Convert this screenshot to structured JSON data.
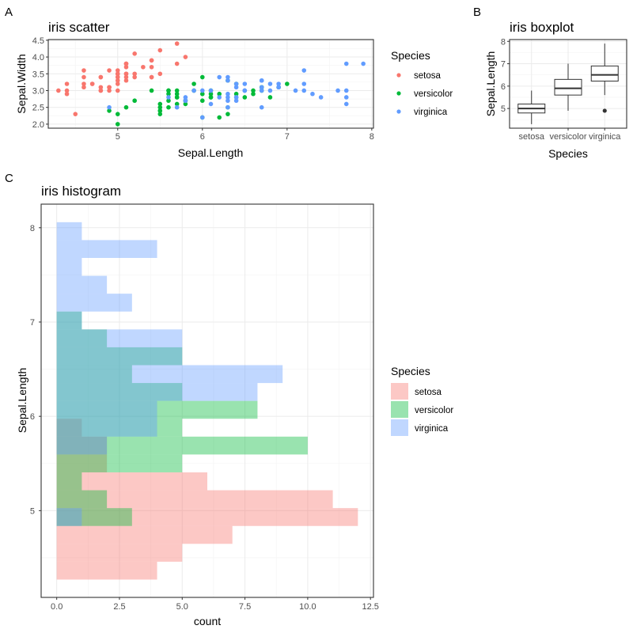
{
  "panel_tags": [
    "A",
    "B",
    "C"
  ],
  "colors": {
    "setosa": "#F8766D",
    "versicolor": "#00BA38",
    "virginica": "#619CFF"
  },
  "chart_data": [
    {
      "id": "scatter",
      "type": "scatter",
      "title": "iris scatter",
      "xlabel": "Sepal.Length",
      "ylabel": "Sepal.Width",
      "xlim": [
        4.18,
        8.02
      ],
      "ylim": [
        1.88,
        4.52
      ],
      "xticks": [
        5,
        6,
        7,
        8
      ],
      "xtick_labels": [
        "5",
        "6",
        "7",
        "8"
      ],
      "yticks": [
        2.0,
        2.5,
        3.0,
        3.5,
        4.0,
        4.5
      ],
      "ytick_labels": [
        "2.0",
        "2.5",
        "3.0",
        "3.5",
        "4.0",
        "4.5"
      ],
      "legend": {
        "title": "Species",
        "position": "right",
        "entries": [
          "setosa",
          "versicolor",
          "virginica"
        ]
      },
      "series": [
        {
          "name": "setosa",
          "x": [
            5.1,
            4.9,
            4.7,
            4.6,
            5.0,
            5.4,
            4.6,
            5.0,
            4.4,
            4.9,
            5.4,
            4.8,
            4.8,
            4.3,
            5.8,
            5.7,
            5.4,
            5.1,
            5.7,
            5.1,
            5.4,
            5.1,
            4.6,
            5.1,
            4.8,
            5.0,
            5.0,
            5.2,
            5.2,
            4.7,
            4.8,
            5.4,
            5.2,
            5.5,
            4.9,
            5.0,
            5.5,
            4.9,
            4.4,
            5.1,
            5.0,
            4.5,
            4.4,
            5.0,
            5.1,
            4.8,
            5.1,
            4.6,
            5.3,
            5.0
          ],
          "y": [
            3.5,
            3.0,
            3.2,
            3.1,
            3.6,
            3.9,
            3.4,
            3.4,
            2.9,
            3.1,
            3.7,
            3.4,
            3.0,
            3.0,
            4.0,
            4.4,
            3.9,
            3.5,
            3.8,
            3.8,
            3.4,
            3.7,
            3.6,
            3.3,
            3.4,
            3.0,
            3.4,
            3.5,
            3.4,
            3.2,
            3.1,
            3.4,
            4.1,
            4.2,
            3.1,
            3.2,
            3.5,
            3.6,
            3.0,
            3.4,
            3.5,
            2.3,
            3.2,
            3.5,
            3.8,
            3.0,
            3.8,
            3.2,
            3.7,
            3.3
          ]
        },
        {
          "name": "versicolor",
          "x": [
            7.0,
            6.4,
            6.9,
            5.5,
            6.5,
            5.7,
            6.3,
            4.9,
            6.6,
            5.2,
            5.0,
            5.9,
            6.0,
            6.1,
            5.6,
            6.7,
            5.6,
            5.8,
            6.2,
            5.6,
            5.9,
            6.1,
            6.3,
            6.1,
            6.4,
            6.6,
            6.8,
            6.7,
            6.0,
            5.7,
            5.5,
            5.5,
            5.8,
            6.0,
            5.4,
            6.0,
            6.7,
            6.3,
            5.6,
            5.5,
            5.5,
            6.1,
            5.8,
            5.0,
            5.6,
            5.7,
            5.7,
            6.2,
            5.1,
            5.7
          ],
          "y": [
            3.2,
            3.2,
            3.1,
            2.3,
            2.8,
            2.8,
            3.3,
            2.4,
            2.9,
            2.7,
            2.0,
            3.0,
            2.2,
            2.9,
            2.9,
            3.1,
            3.0,
            2.7,
            2.2,
            2.5,
            3.2,
            2.8,
            2.5,
            2.8,
            2.9,
            3.0,
            2.8,
            3.0,
            2.9,
            2.6,
            2.4,
            2.4,
            2.7,
            2.7,
            3.0,
            3.4,
            3.1,
            2.3,
            3.0,
            2.5,
            2.6,
            3.0,
            2.6,
            2.3,
            2.7,
            3.0,
            2.9,
            2.9,
            2.5,
            2.8
          ]
        },
        {
          "name": "virginica",
          "x": [
            6.3,
            5.8,
            7.1,
            6.3,
            6.5,
            7.6,
            4.9,
            7.3,
            6.7,
            7.2,
            6.5,
            6.4,
            6.8,
            5.7,
            5.8,
            6.4,
            6.5,
            7.7,
            7.7,
            6.0,
            6.9,
            5.6,
            7.7,
            6.3,
            6.7,
            7.2,
            6.2,
            6.1,
            6.4,
            7.2,
            7.4,
            7.9,
            6.4,
            6.3,
            6.1,
            7.7,
            6.3,
            6.4,
            6.0,
            6.9,
            6.7,
            6.9,
            5.8,
            6.8,
            6.7,
            6.7,
            6.3,
            6.5,
            6.2,
            5.9
          ],
          "y": [
            3.3,
            2.7,
            3.0,
            2.9,
            3.0,
            3.0,
            2.5,
            2.9,
            2.5,
            3.6,
            3.2,
            2.7,
            3.0,
            2.5,
            2.8,
            3.2,
            3.0,
            3.8,
            2.6,
            2.2,
            3.2,
            2.8,
            2.8,
            2.7,
            3.3,
            3.2,
            2.8,
            3.0,
            2.8,
            3.0,
            2.8,
            3.8,
            2.8,
            2.8,
            2.6,
            3.0,
            3.4,
            3.1,
            3.0,
            3.1,
            3.1,
            3.1,
            2.7,
            3.2,
            3.3,
            3.0,
            2.5,
            3.0,
            3.4,
            3.0
          ]
        }
      ]
    },
    {
      "id": "boxplot",
      "type": "box",
      "title": "iris boxplot",
      "xlabel": "Species",
      "ylabel": "Sepal.Length",
      "categories": [
        "setosa",
        "versicolor",
        "virginica"
      ],
      "ylim": [
        4.12,
        8.08
      ],
      "yticks": [
        5,
        6,
        7,
        8
      ],
      "ytick_labels": [
        "5",
        "6",
        "7",
        "8"
      ],
      "boxes": [
        {
          "name": "setosa",
          "lower_whisker": 4.3,
          "q1": 4.8,
          "median": 5.0,
          "q3": 5.2,
          "upper_whisker": 5.8,
          "outliers": []
        },
        {
          "name": "versicolor",
          "lower_whisker": 4.9,
          "q1": 5.6,
          "median": 5.9,
          "q3": 6.3,
          "upper_whisker": 7.0,
          "outliers": []
        },
        {
          "name": "virginica",
          "lower_whisker": 5.6,
          "q1": 6.225,
          "median": 6.5,
          "q3": 6.9,
          "upper_whisker": 7.9,
          "outliers": [
            4.9
          ]
        }
      ]
    },
    {
      "id": "histogram",
      "type": "bar",
      "orientation": "horizontal",
      "title": "iris histogram",
      "xlabel": "count",
      "ylabel": "Sepal.Length",
      "xlim": [
        -0.62,
        12.62
      ],
      "ylim": [
        4.08,
        8.25
      ],
      "xticks": [
        0,
        2.5,
        5,
        7.5,
        10,
        12.5
      ],
      "xtick_labels": [
        "0.0",
        "2.5",
        "5.0",
        "7.5",
        "10.0",
        "12.5"
      ],
      "yticks": [
        5,
        6,
        7,
        8
      ],
      "ytick_labels": [
        "5",
        "6",
        "7",
        "8"
      ],
      "bin_start": 4.269,
      "bin_width": 0.18947,
      "legend": {
        "title": "Species",
        "position": "right",
        "entries": [
          "setosa",
          "versicolor",
          "virginica"
        ]
      },
      "fill_alpha": 0.4,
      "series": [
        {
          "name": "setosa",
          "counts": [
            4,
            5,
            7,
            12,
            11,
            6,
            2,
            2,
            1,
            0,
            0,
            0,
            0,
            0,
            0,
            0,
            0,
            0,
            0,
            0
          ]
        },
        {
          "name": "versicolor",
          "counts": [
            0,
            0,
            0,
            3,
            2,
            1,
            5,
            10,
            5,
            8,
            5,
            3,
            5,
            2,
            1,
            0,
            0,
            0,
            0,
            0
          ]
        },
        {
          "name": "virginica",
          "counts": [
            0,
            0,
            0,
            1,
            0,
            0,
            0,
            2,
            4,
            4,
            8,
            9,
            5,
            5,
            1,
            3,
            2,
            1,
            4,
            1
          ]
        }
      ]
    }
  ]
}
